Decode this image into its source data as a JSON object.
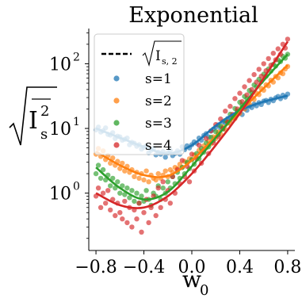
{
  "chart_data": {
    "type": "scatter",
    "title": "Exponential",
    "xlabel": "w",
    "xlabel_sub": "0",
    "ylabel": "I",
    "ylabel_sub": "s",
    "ylabel_sup": "2",
    "yscale": "log",
    "xlim": [
      -0.86,
      0.86
    ],
    "ylim": [
      0.13,
      350
    ],
    "xticks": [
      -0.8,
      -0.4,
      0.0,
      0.4,
      0.8
    ],
    "xtick_labels": [
      "−0.8",
      "−0.4",
      "0.0",
      "0.4",
      "0.8"
    ],
    "yticks": [
      1,
      10,
      100
    ],
    "ytick_base": "10",
    "ytick_exponents": [
      "0",
      "1",
      "2"
    ],
    "grid": false,
    "legend_position": "top-left",
    "legend": {
      "line_label_main": "I",
      "line_label_sub": "s, 2",
      "line_color": "#000000"
    },
    "series": [
      {
        "name": "s=1",
        "color": "#1f77b4",
        "curve": {
          "x": [
            -0.8,
            -0.6,
            -0.4,
            -0.2,
            0.0,
            0.2,
            0.4,
            0.6,
            0.8
          ],
          "y": [
            10,
            7.2,
            5.2,
            4.1,
            5.5,
            11,
            19,
            26,
            32
          ]
        },
        "points": {
          "x": [
            -0.8,
            -0.78,
            -0.76,
            -0.74,
            -0.72,
            -0.7,
            -0.68,
            -0.66,
            -0.64,
            -0.62,
            -0.6,
            -0.58,
            -0.56,
            -0.54,
            -0.52,
            -0.5,
            -0.48,
            -0.46,
            -0.44,
            -0.42,
            -0.4,
            -0.38,
            -0.36,
            -0.34,
            -0.32,
            -0.3,
            -0.28,
            -0.26,
            -0.24,
            -0.22,
            -0.2,
            -0.18,
            -0.16,
            -0.14,
            -0.12,
            -0.1,
            -0.08,
            -0.06,
            -0.04,
            -0.02,
            0.0,
            0.02,
            0.04,
            0.06,
            0.08,
            0.1,
            0.12,
            0.14,
            0.16,
            0.18,
            0.2,
            0.22,
            0.24,
            0.26,
            0.28,
            0.3,
            0.32,
            0.34,
            0.36,
            0.38,
            0.4,
            0.42,
            0.44,
            0.46,
            0.48,
            0.5,
            0.52,
            0.54,
            0.56,
            0.58,
            0.6,
            0.62,
            0.64,
            0.66,
            0.68,
            0.7,
            0.72,
            0.74,
            0.76,
            0.78,
            0.8
          ],
          "y": [
            9.5,
            10.5,
            8.8,
            9.2,
            10.2,
            8.1,
            7.9,
            8.6,
            7.0,
            7.6,
            7.4,
            6.6,
            6.8,
            7.1,
            5.6,
            6.1,
            5.9,
            5.3,
            5.6,
            4.8,
            5.1,
            5.4,
            4.2,
            4.6,
            4.9,
            3.9,
            4.3,
            4.0,
            4.4,
            3.6,
            4.2,
            4.6,
            3.8,
            4.1,
            4.5,
            4.0,
            5.2,
            4.7,
            5.4,
            5.0,
            5.6,
            6.2,
            5.9,
            7.1,
            6.6,
            7.8,
            8.3,
            7.4,
            9.1,
            9.8,
            10.5,
            11.4,
            10.1,
            12.8,
            12.2,
            14.3,
            13.4,
            15.6,
            14.6,
            17.2,
            18.1,
            16.4,
            20.3,
            19.1,
            22.2,
            21.0,
            23.8,
            22.4,
            25.1,
            23.5,
            26.4,
            27.1,
            25.2,
            28.3,
            26.8,
            29.7,
            31.2,
            28.8,
            32.6,
            30.5,
            34.0
          ]
        }
      },
      {
        "name": "s=2",
        "color": "#ff7f0e",
        "curve": {
          "x": [
            -0.8,
            -0.6,
            -0.4,
            -0.2,
            0.0,
            0.2,
            0.4,
            0.6,
            0.8
          ],
          "y": [
            4.4,
            2.7,
            1.9,
            1.85,
            3.2,
            7.6,
            18,
            42,
            95
          ]
        },
        "points": {
          "x": [
            -0.8,
            -0.78,
            -0.76,
            -0.74,
            -0.72,
            -0.7,
            -0.68,
            -0.66,
            -0.64,
            -0.62,
            -0.6,
            -0.58,
            -0.56,
            -0.54,
            -0.52,
            -0.5,
            -0.48,
            -0.46,
            -0.44,
            -0.42,
            -0.4,
            -0.38,
            -0.36,
            -0.34,
            -0.32,
            -0.3,
            -0.28,
            -0.26,
            -0.24,
            -0.22,
            -0.2,
            -0.18,
            -0.16,
            -0.14,
            -0.12,
            -0.1,
            -0.08,
            -0.06,
            -0.04,
            -0.02,
            0.0,
            0.02,
            0.04,
            0.06,
            0.08,
            0.1,
            0.12,
            0.14,
            0.16,
            0.18,
            0.2,
            0.22,
            0.24,
            0.26,
            0.28,
            0.3,
            0.32,
            0.34,
            0.36,
            0.38,
            0.4,
            0.42,
            0.44,
            0.46,
            0.48,
            0.5,
            0.52,
            0.54,
            0.56,
            0.58,
            0.6,
            0.62,
            0.64,
            0.66,
            0.68,
            0.7,
            0.72,
            0.74,
            0.76,
            0.78,
            0.8
          ],
          "y": [
            4.0,
            4.9,
            3.7,
            4.5,
            3.3,
            3.8,
            2.9,
            3.5,
            2.7,
            3.1,
            2.4,
            2.9,
            2.2,
            2.6,
            2.1,
            2.3,
            1.8,
            2.1,
            1.7,
            2.0,
            1.6,
            2.2,
            1.5,
            1.9,
            1.7,
            1.6,
            2.0,
            1.7,
            1.9,
            2.2,
            1.8,
            2.3,
            2.1,
            2.5,
            2.4,
            2.8,
            2.5,
            3.1,
            2.9,
            3.4,
            3.3,
            3.9,
            3.6,
            4.6,
            4.2,
            5.4,
            5.0,
            6.3,
            5.8,
            7.4,
            7.0,
            8.8,
            8.2,
            10.6,
            9.7,
            12.5,
            11.9,
            15.1,
            14.2,
            18.0,
            17.1,
            21.4,
            20.0,
            25.3,
            23.8,
            30.1,
            28.2,
            35.0,
            33.4,
            41.5,
            39.0,
            47.2,
            45.4,
            55.6,
            52.0,
            63.7,
            60.5,
            72.4,
            70.1,
            83.0,
            91.0
          ]
        }
      },
      {
        "name": "s=3",
        "color": "#2ca02c",
        "curve": {
          "x": [
            -0.8,
            -0.6,
            -0.4,
            -0.2,
            0.0,
            0.2,
            0.4,
            0.6,
            0.8
          ],
          "y": [
            2.5,
            1.2,
            0.8,
            1.05,
            2.6,
            7.2,
            20,
            55,
            140
          ]
        },
        "points": {
          "x": [
            -0.8,
            -0.78,
            -0.76,
            -0.74,
            -0.72,
            -0.7,
            -0.68,
            -0.66,
            -0.64,
            -0.62,
            -0.6,
            -0.58,
            -0.56,
            -0.54,
            -0.52,
            -0.5,
            -0.48,
            -0.46,
            -0.44,
            -0.42,
            -0.4,
            -0.38,
            -0.36,
            -0.34,
            -0.32,
            -0.3,
            -0.28,
            -0.26,
            -0.24,
            -0.22,
            -0.2,
            -0.18,
            -0.16,
            -0.14,
            -0.12,
            -0.1,
            -0.08,
            -0.06,
            -0.04,
            -0.02,
            0.0,
            0.02,
            0.04,
            0.06,
            0.08,
            0.1,
            0.12,
            0.14,
            0.16,
            0.18,
            0.2,
            0.22,
            0.24,
            0.26,
            0.28,
            0.3,
            0.32,
            0.34,
            0.36,
            0.38,
            0.4,
            0.42,
            0.44,
            0.46,
            0.48,
            0.5,
            0.52,
            0.54,
            0.56,
            0.58,
            0.6,
            0.62,
            0.64,
            0.66,
            0.68,
            0.7,
            0.72,
            0.74,
            0.76,
            0.78,
            0.8
          ],
          "y": [
            2.0,
            2.7,
            1.7,
            2.3,
            1.6,
            1.9,
            1.3,
            1.7,
            1.2,
            1.5,
            1.0,
            1.3,
            0.95,
            1.2,
            0.85,
            1.1,
            0.75,
            1.0,
            0.7,
            0.9,
            0.75,
            1.1,
            0.8,
            0.65,
            1.0,
            0.9,
            1.3,
            0.8,
            1.2,
            1.0,
            1.5,
            1.2,
            1.8,
            1.4,
            2.1,
            1.7,
            2.5,
            2.0,
            3.0,
            2.4,
            3.3,
            2.8,
            4.1,
            3.4,
            4.9,
            4.3,
            6.0,
            5.2,
            7.3,
            6.5,
            8.9,
            8.0,
            10.9,
            9.8,
            13.3,
            12.2,
            16.6,
            15.0,
            20.3,
            18.5,
            25.4,
            23.0,
            31.2,
            28.9,
            38.6,
            35.5,
            47.0,
            44.0,
            57.5,
            53.0,
            69.0,
            64.0,
            83.0,
            77.0,
            98.0,
            92.0,
            115.0,
            108.0,
            130.0,
            122.0,
            140.0
          ]
        }
      },
      {
        "name": "s=4",
        "color": "#d62728",
        "curve": {
          "x": [
            -0.8,
            -0.6,
            -0.4,
            -0.2,
            0.0,
            0.2,
            0.4,
            0.6,
            0.8
          ],
          "y": [
            1.0,
            0.65,
            0.6,
            0.9,
            2.0,
            5.5,
            17,
            60,
            220
          ]
        },
        "points": {
          "x": [
            -0.8,
            -0.78,
            -0.76,
            -0.74,
            -0.72,
            -0.7,
            -0.68,
            -0.66,
            -0.64,
            -0.62,
            -0.6,
            -0.58,
            -0.56,
            -0.54,
            -0.52,
            -0.5,
            -0.48,
            -0.46,
            -0.44,
            -0.42,
            -0.4,
            -0.38,
            -0.36,
            -0.34,
            -0.32,
            -0.3,
            -0.28,
            -0.26,
            -0.24,
            -0.22,
            -0.2,
            -0.18,
            -0.16,
            -0.14,
            -0.12,
            -0.1,
            -0.08,
            -0.06,
            -0.04,
            -0.02,
            0.0,
            0.02,
            0.04,
            0.06,
            0.08,
            0.1,
            0.12,
            0.14,
            0.16,
            0.18,
            0.2,
            0.22,
            0.24,
            0.26,
            0.28,
            0.3,
            0.32,
            0.34,
            0.36,
            0.38,
            0.4,
            0.42,
            0.44,
            0.46,
            0.48,
            0.5,
            0.52,
            0.54,
            0.56,
            0.58,
            0.6,
            0.62,
            0.64,
            0.66,
            0.68,
            0.7,
            0.72,
            0.74,
            0.76,
            0.78,
            0.8
          ],
          "y": [
            0.9,
            1.2,
            0.6,
            1.0,
            0.7,
            1.1,
            0.55,
            0.8,
            0.45,
            0.7,
            0.5,
            0.4,
            0.75,
            0.35,
            0.6,
            0.3,
            0.55,
            0.4,
            0.7,
            0.25,
            0.5,
            0.8,
            0.35,
            0.6,
            0.9,
            0.45,
            1.2,
            0.6,
            1.5,
            0.8,
            1.1,
            0.7,
            1.8,
            1.0,
            2.3,
            1.4,
            3.2,
            1.8,
            2.6,
            1.5,
            4.0,
            2.2,
            3.4,
            5.5,
            2.9,
            4.6,
            7.0,
            4.1,
            9.2,
            6.0,
            11.5,
            7.5,
            14.0,
            10.0,
            18.5,
            12.5,
            22.0,
            16.5,
            29.0,
            20.0,
            35.0,
            26.0,
            44.0,
            33.0,
            55.0,
            40.0,
            68.0,
            52.0,
            82.0,
            64.0,
            100.0,
            78.0,
            120.0,
            95.0,
            145.0,
            115.0,
            170.0,
            140.0,
            200.0,
            175.0,
            240.0
          ]
        }
      }
    ]
  }
}
